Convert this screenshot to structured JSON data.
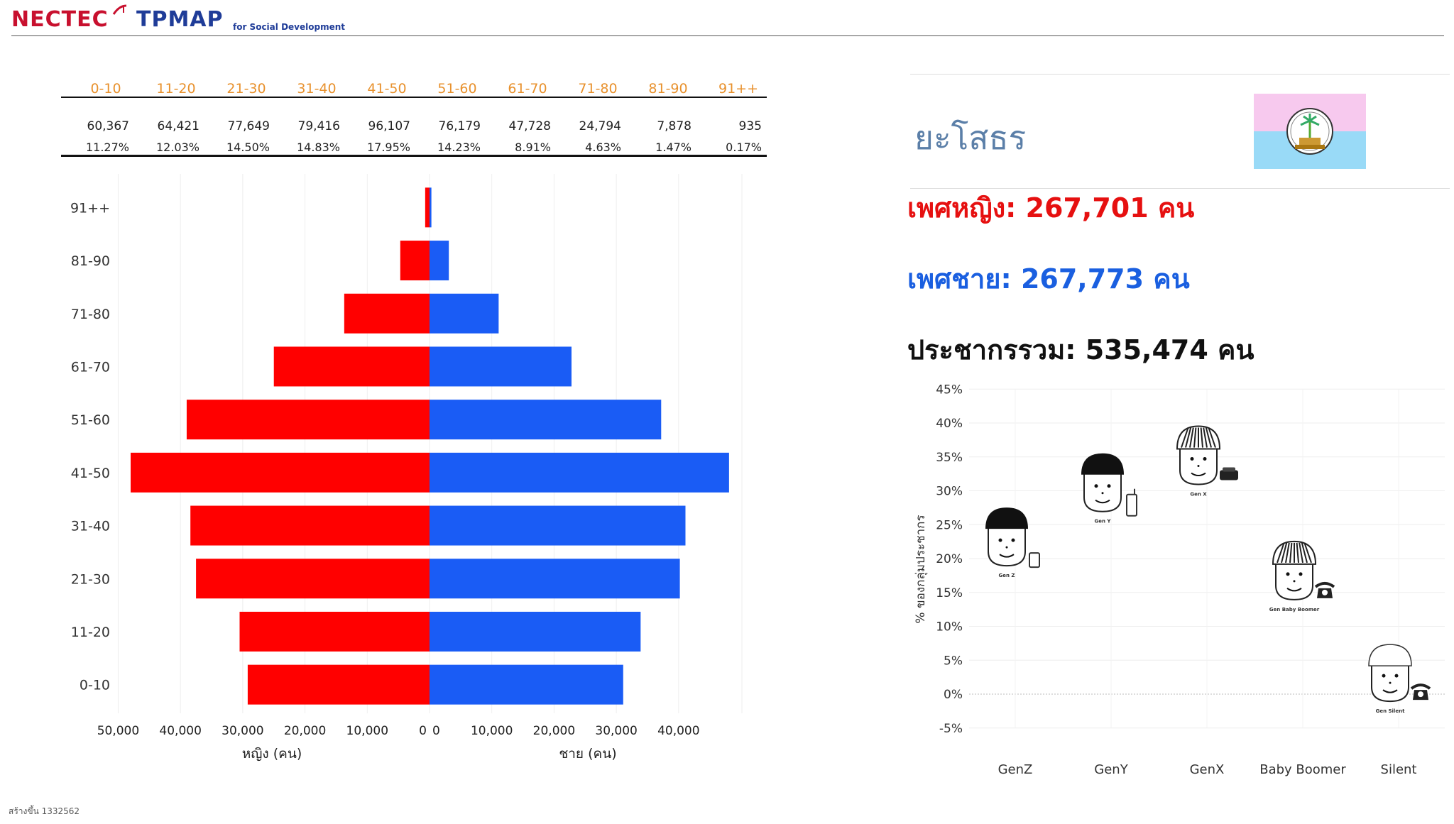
{
  "header": {
    "logo_nectec": "NECTEC",
    "logo_tpmap": "TPMAP",
    "logo_subtitle": "for Social Development"
  },
  "age_table": {
    "groups": [
      "0-10",
      "11-20",
      "21-30",
      "31-40",
      "41-50",
      "51-60",
      "61-70",
      "71-80",
      "81-90",
      "91++"
    ],
    "counts": [
      "60,367",
      "64,421",
      "77,649",
      "79,416",
      "96,107",
      "76,179",
      "47,728",
      "24,794",
      "7,878",
      "935"
    ],
    "percents": [
      "11.27%",
      "12.03%",
      "14.50%",
      "14.83%",
      "17.95%",
      "14.23%",
      "8.91%",
      "4.63%",
      "1.47%",
      "0.17%"
    ]
  },
  "summary": {
    "province": "ยะโสธร",
    "female": "เพศหญิง: 267,701 คน",
    "male": "เพศชาย: 267,773 คน",
    "total": "ประชากรรวม: 535,474 คน"
  },
  "footer": "สร้างขึ้น 1332562",
  "colors": {
    "female": "#ff0000",
    "male": "#1a5cf5",
    "age_header": "#e8912d"
  },
  "chart_data": [
    {
      "type": "bar",
      "orientation": "horizontal-pyramid",
      "categories": [
        "0-10",
        "11-20",
        "21-30",
        "31-40",
        "41-50",
        "51-60",
        "61-70",
        "71-80",
        "81-90",
        "91++"
      ],
      "series": [
        {
          "name": "หญิง (คน)",
          "values": [
            29200,
            30500,
            37500,
            38400,
            48000,
            39000,
            25000,
            13700,
            4700,
            700
          ]
        },
        {
          "name": "ชาย (คน)",
          "values": [
            31100,
            33900,
            40200,
            41100,
            48100,
            37200,
            22800,
            11100,
            3100,
            300
          ]
        }
      ],
      "left_ticks": [
        "50,000",
        "40,000",
        "30,000",
        "20,000",
        "10,000",
        "0"
      ],
      "right_ticks": [
        "0",
        "10,000",
        "20,000",
        "30,000",
        "40,000"
      ],
      "xlabel_left": "หญิง (คน)",
      "xlabel_right": "ชาย (คน)",
      "xlim": [
        -50000,
        50000
      ],
      "grid": true
    },
    {
      "type": "scatter",
      "categories": [
        "GenZ",
        "GenY",
        "GenX",
        "Baby Boomer",
        "Silent"
      ],
      "values": [
        22.5,
        30.5,
        34.5,
        17.5,
        2.5
      ],
      "point_labels": [
        "Gen Z",
        "Gen Y",
        "Gen X",
        "Gen Baby Boomer",
        "Gen Silent"
      ],
      "ylabel": "% ของกลุ่มประชากร",
      "yticks": [
        "45%",
        "40%",
        "35%",
        "30%",
        "25%",
        "20%",
        "15%",
        "10%",
        "5%",
        "0%",
        "-5%"
      ],
      "ylim": [
        -5,
        45
      ],
      "grid": true
    }
  ]
}
